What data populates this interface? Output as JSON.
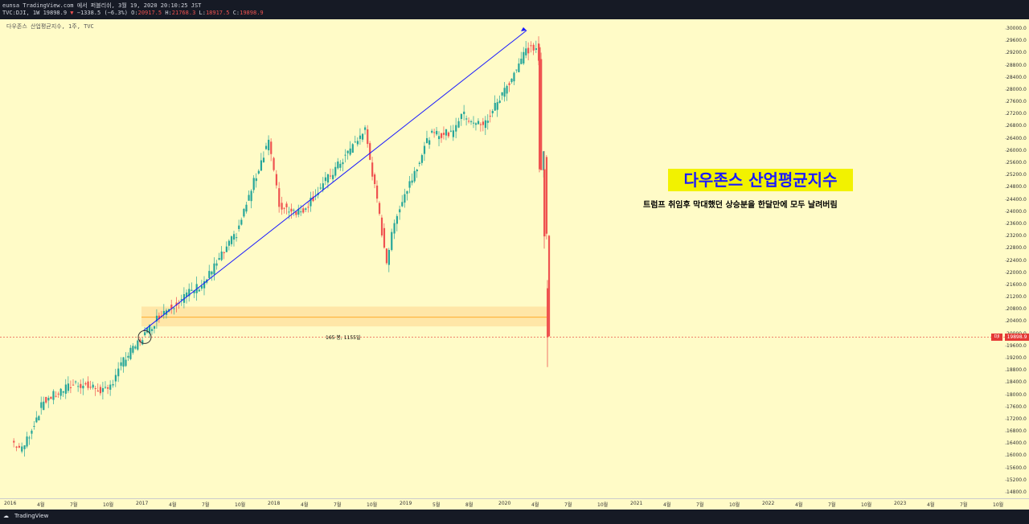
{
  "header": {
    "line1": "eunsa TradingView.com 에서 퍼블리쉬, 3월 19, 2020 20:10:25 JST",
    "line2_prefix": "TVC:DJI, 1W 19898.9",
    "line2_change": "−1338.5 (−6.3%)",
    "line2_ohlc_o_label": "O:",
    "line2_ohlc_o": "20917.5",
    "line2_ohlc_h_label": "H:",
    "line2_ohlc_h": "21768.3",
    "line2_ohlc_l_label": "L:",
    "line2_ohlc_l": "18917.5",
    "line2_ohlc_c_label": "C:",
    "line2_ohlc_c": "19898.9"
  },
  "symbol_label": "다우존스 산업평균지수, 1주, TVC",
  "annotation_title": "다우존스 산업평균지수",
  "annotation_text": "트럼프 취임후 막대했던 상승분을 한달만에 모두 날려버림",
  "range_measure_label": "165 봉, 1155일",
  "price_tag_symbol": "DJI",
  "price_tag_value": "19898.9",
  "footer": {
    "brand": "TradingView"
  },
  "colors": {
    "up": "#26a69a",
    "down": "#ef5350",
    "bg": "#fffbc7",
    "arrow": "#1a1aff",
    "range": "#ffcc80"
  },
  "chart_data": {
    "type": "candlestick",
    "title": "다우존스 산업평균지수, 1주, TVC",
    "ylim": [
      14600,
      30400
    ],
    "y_ticks": [
      "30000.0",
      "29600.0",
      "29200.0",
      "28800.0",
      "28400.0",
      "28000.0",
      "27600.0",
      "27200.0",
      "26800.0",
      "26400.0",
      "26000.0",
      "25600.0",
      "25200.0",
      "24800.0",
      "24400.0",
      "24000.0",
      "23600.0",
      "23200.0",
      "22800.0",
      "22400.0",
      "22000.0",
      "21600.0",
      "21200.0",
      "20800.0",
      "20400.0",
      "20000.0",
      "19600.0",
      "19200.0",
      "18800.0",
      "18400.0",
      "18000.0",
      "17600.0",
      "17200.0",
      "16800.0",
      "16400.0",
      "16000.0",
      "15600.0",
      "15200.0",
      "14800.0"
    ],
    "x_ticks": [
      "2016",
      "4월",
      "7월",
      "10월",
      "2017",
      "4월",
      "7월",
      "10월",
      "2018",
      "4월",
      "7월",
      "10월",
      "2019",
      "5월",
      "8월",
      "2020",
      "4월",
      "7월",
      "10월",
      "2021",
      "4월",
      "7월",
      "10월",
      "2022",
      "4월",
      "7월",
      "10월",
      "2023",
      "4월",
      "7월",
      "10월"
    ],
    "series": [
      {
        "x": "2016-01",
        "y": 16500
      },
      {
        "x": "2016-02",
        "y": 16200
      },
      {
        "x": "2016-04",
        "y": 17800
      },
      {
        "x": "2016-07",
        "y": 18400
      },
      {
        "x": "2016-10",
        "y": 18100
      },
      {
        "x": "2016-11",
        "y": 18900
      },
      {
        "x": "2017-01",
        "y": 19800
      },
      {
        "x": "2017-03",
        "y": 20700
      },
      {
        "x": "2017-07",
        "y": 21700
      },
      {
        "x": "2017-10",
        "y": 23300
      },
      {
        "x": "2018-01",
        "y": 26400
      },
      {
        "x": "2018-02",
        "y": 24200
      },
      {
        "x": "2018-04",
        "y": 24000
      },
      {
        "x": "2018-07",
        "y": 25300
      },
      {
        "x": "2018-10",
        "y": 26700
      },
      {
        "x": "2018-12",
        "y": 22400
      },
      {
        "x": "2019-01",
        "y": 24000
      },
      {
        "x": "2019-04",
        "y": 26500
      },
      {
        "x": "2019-06",
        "y": 26600
      },
      {
        "x": "2019-07",
        "y": 27200
      },
      {
        "x": "2019-09",
        "y": 26800
      },
      {
        "x": "2019-11",
        "y": 28000
      },
      {
        "x": "2020-01",
        "y": 29300
      },
      {
        "x": "2020-02-14",
        "y": 29400
      },
      {
        "x": "2020-02-21",
        "y": 28900
      },
      {
        "x": "2020-02-28",
        "y": 25400
      },
      {
        "x": "2020-03-06",
        "y": 25900
      },
      {
        "x": "2020-03-13",
        "y": 23200
      },
      {
        "x": "2020-03-19",
        "y": 19898.9
      }
    ],
    "last_value": 19898.9
  }
}
